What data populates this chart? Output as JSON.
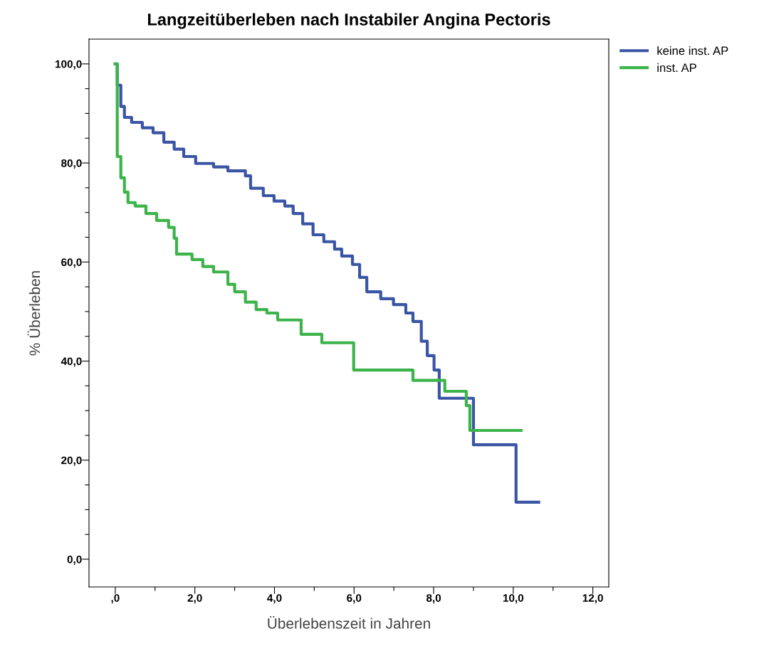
{
  "chart_data": {
    "type": "step",
    "title": "Langzeitüberleben nach Instabiler Angina Pectoris",
    "xlabel": "Überlebenszeit in Jahren",
    "ylabel": "% Überleben",
    "xlim": [
      -0.66,
      12.4
    ],
    "ylim": [
      -5.6,
      105.0
    ],
    "xticks": [
      {
        "value": 0,
        "label": ",0"
      },
      {
        "value": 1,
        "label": null
      },
      {
        "value": 2,
        "label": "2,0"
      },
      {
        "value": 3,
        "label": null
      },
      {
        "value": 4,
        "label": "4,0"
      },
      {
        "value": 5,
        "label": null
      },
      {
        "value": 6,
        "label": "6,0"
      },
      {
        "value": 7,
        "label": null
      },
      {
        "value": 8,
        "label": "8,0"
      },
      {
        "value": 9,
        "label": null
      },
      {
        "value": 10,
        "label": "10,0"
      },
      {
        "value": 11,
        "label": null
      },
      {
        "value": 12,
        "label": "12,0"
      }
    ],
    "yticks": [
      {
        "value": 0,
        "label": "0,0"
      },
      {
        "value": 5,
        "label": null
      },
      {
        "value": 10,
        "label": null
      },
      {
        "value": 15,
        "label": null
      },
      {
        "value": 20,
        "label": "20,0"
      },
      {
        "value": 25,
        "label": null
      },
      {
        "value": 30,
        "label": null
      },
      {
        "value": 35,
        "label": null
      },
      {
        "value": 40,
        "label": "40,0"
      },
      {
        "value": 45,
        "label": null
      },
      {
        "value": 50,
        "label": null
      },
      {
        "value": 55,
        "label": null
      },
      {
        "value": 60,
        "label": "60,0"
      },
      {
        "value": 65,
        "label": null
      },
      {
        "value": 70,
        "label": null
      },
      {
        "value": 75,
        "label": null
      },
      {
        "value": 80,
        "label": "80,0"
      },
      {
        "value": 85,
        "label": null
      },
      {
        "value": 90,
        "label": null
      },
      {
        "value": 95,
        "label": null
      },
      {
        "value": 100,
        "label": "100,0"
      }
    ],
    "grid": false,
    "legend": "top right",
    "marker": "none",
    "line_style": "solid",
    "series": [
      {
        "name": "keine inst. AP",
        "color": "#3a55a4",
        "x": [
          0,
          0.05,
          0.14,
          0.23,
          0.41,
          0.68,
          0.95,
          1.22,
          1.48,
          1.72,
          2.02,
          2.47,
          2.83,
          3.27,
          3.4,
          3.72,
          3.99,
          4.26,
          4.47,
          4.71,
          4.97,
          5.24,
          5.51,
          5.69,
          5.96,
          6.14,
          6.32,
          6.67,
          6.99,
          7.3,
          7.48,
          7.69,
          7.84,
          8.01,
          8.14,
          8.82,
          9.0,
          10.07,
          10.64
        ],
        "values": [
          100,
          95.7,
          91.4,
          89.2,
          88.2,
          87.1,
          86.1,
          84.2,
          82.8,
          81.3,
          79.9,
          79.2,
          78.4,
          77.4,
          74.9,
          73.4,
          72.3,
          71.3,
          69.8,
          67.7,
          65.5,
          64.1,
          62.6,
          61.2,
          59.5,
          56.9,
          54.0,
          52.6,
          51.4,
          49.7,
          48.0,
          44.0,
          41.1,
          38.2,
          32.5,
          32.5,
          23.1,
          11.5,
          11.5
        ]
      },
      {
        "name": "inst. AP",
        "color": "#3cb44a",
        "x": [
          0,
          0.05,
          0.14,
          0.23,
          0.32,
          0.5,
          0.77,
          1.04,
          1.34,
          1.48,
          1.54,
          1.93,
          2.2,
          2.47,
          2.83,
          3.0,
          3.27,
          3.54,
          3.81,
          4.08,
          4.67,
          5.19,
          5.99,
          7.48,
          8.28,
          8.82,
          8.91,
          10.2
        ],
        "values": [
          100,
          81.3,
          77.0,
          74.1,
          72.0,
          71.3,
          69.8,
          68.4,
          67.0,
          64.8,
          61.6,
          60.5,
          59.1,
          58.0,
          55.5,
          54.0,
          51.9,
          50.4,
          49.7,
          48.3,
          45.4,
          43.7,
          38.2,
          36.1,
          33.9,
          31.0,
          26.0,
          26.0
        ]
      }
    ]
  }
}
